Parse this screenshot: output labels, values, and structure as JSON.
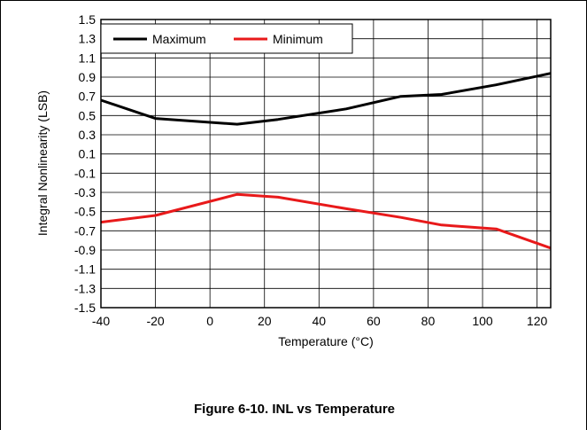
{
  "caption": "Figure 6-10. INL vs Temperature",
  "chart_data": {
    "type": "line",
    "title": "",
    "xlabel": "Temperature (°C)",
    "ylabel": "Integral Nonlinearity (LSB)",
    "xlim": [
      -40,
      125
    ],
    "ylim": [
      -1.5,
      1.5
    ],
    "x_ticks": [
      -40,
      -20,
      0,
      20,
      40,
      60,
      80,
      100,
      120
    ],
    "y_ticks": [
      1.5,
      1.3,
      1.1,
      0.9,
      0.7,
      0.5,
      0.3,
      0.1,
      -0.1,
      -0.3,
      -0.5,
      -0.7,
      -0.9,
      -1.1,
      -1.3,
      -1.5
    ],
    "y_tick_labels": [
      "1.5",
      "1.3",
      "1.1",
      "0.9",
      "0.7",
      "0.5",
      "0.3",
      "0.1",
      "-0.1",
      "-0.3",
      "-0.5",
      "-0.7",
      "-0.9",
      "-1.1",
      "-1.3",
      "-1.5"
    ],
    "x_tick_labels": [
      "-40",
      "-20",
      "0",
      "20",
      "40",
      "60",
      "80",
      "100",
      "120"
    ],
    "grid": true,
    "legend_position": "top-left",
    "series": [
      {
        "name": "Maximum",
        "color": "#000000",
        "x": [
          -40,
          -20,
          10,
          25,
          50,
          70,
          85,
          105,
          125
        ],
        "y": [
          0.66,
          0.47,
          0.41,
          0.46,
          0.57,
          0.7,
          0.72,
          0.82,
          0.94
        ]
      },
      {
        "name": "Minimum",
        "color": "#e8191a",
        "x": [
          -40,
          -20,
          10,
          25,
          50,
          70,
          85,
          105,
          125
        ],
        "y": [
          -0.61,
          -0.54,
          -0.32,
          -0.35,
          -0.47,
          -0.56,
          -0.64,
          -0.68,
          -0.88
        ]
      }
    ]
  }
}
